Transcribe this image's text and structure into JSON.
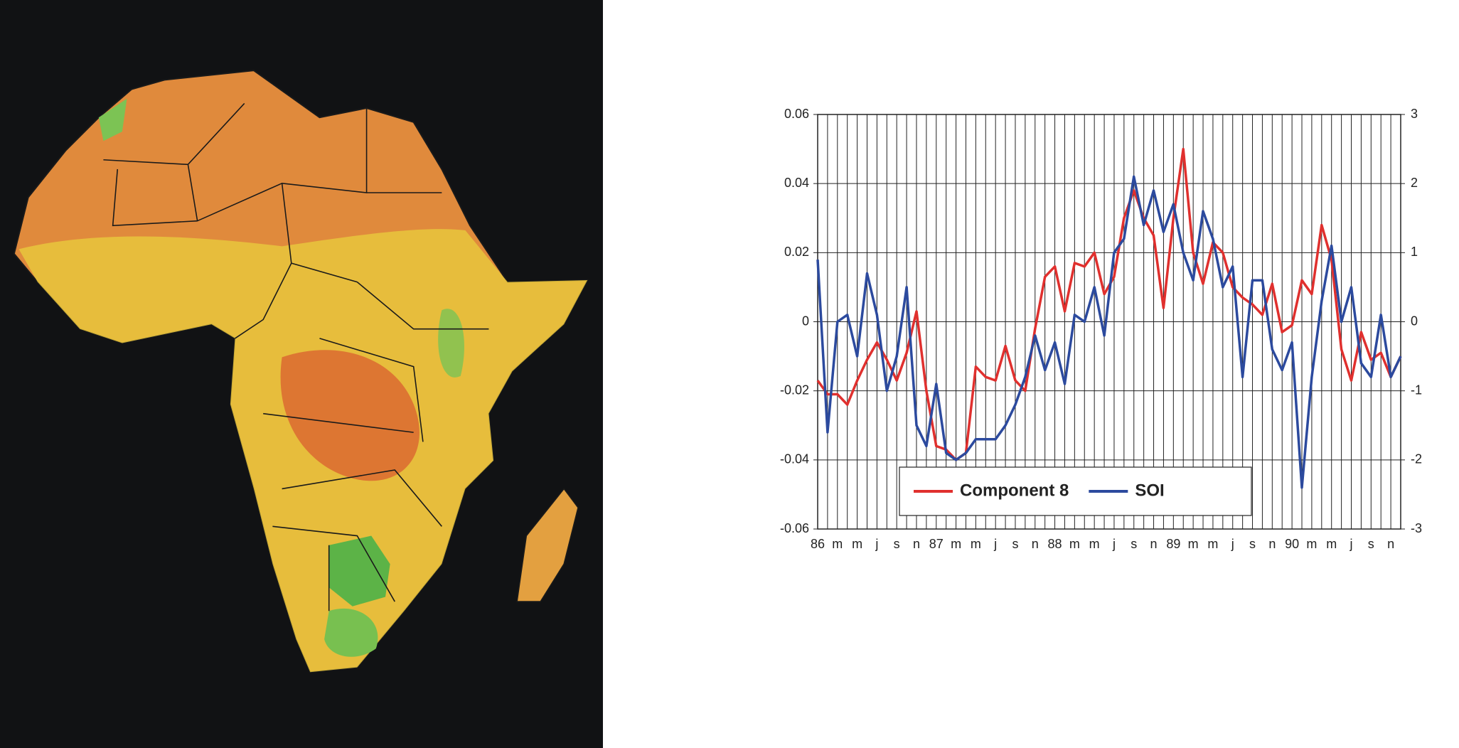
{
  "chart_data": {
    "type": "line",
    "categories": [
      "86",
      null,
      "m",
      null,
      "m",
      null,
      "j",
      null,
      "s",
      null,
      "n",
      null,
      "87",
      null,
      "m",
      null,
      "m",
      null,
      "j",
      null,
      "s",
      null,
      "n",
      null,
      "88",
      null,
      "m",
      null,
      "m",
      null,
      "j",
      null,
      "s",
      null,
      "n",
      null,
      "89",
      null,
      "m",
      null,
      "m",
      null,
      "j",
      null,
      "s",
      null,
      "n",
      null,
      "90",
      null,
      "m",
      null,
      "m",
      null,
      "j",
      null,
      "s",
      null,
      "n",
      null
    ],
    "series": [
      {
        "name": "Component 8",
        "color": "#e0302e",
        "axis": "y",
        "values": [
          -0.017,
          -0.021,
          -0.021,
          -0.024,
          -0.017,
          -0.011,
          -0.006,
          -0.011,
          -0.017,
          -0.009,
          0.003,
          -0.02,
          -0.036,
          -0.037,
          -0.04,
          -0.038,
          -0.013,
          -0.016,
          -0.017,
          -0.007,
          -0.017,
          -0.02,
          -0.002,
          0.013,
          0.016,
          0.003,
          0.017,
          0.016,
          0.02,
          0.008,
          0.013,
          0.03,
          0.038,
          0.03,
          0.025,
          0.004,
          0.03,
          0.05,
          0.02,
          0.011,
          0.023,
          0.02,
          0.01,
          0.007,
          0.005,
          0.002,
          0.011,
          -0.003,
          -0.001,
          0.012,
          0.008,
          0.028,
          0.018,
          -0.008,
          -0.017,
          -0.003,
          -0.011,
          -0.009,
          -0.016,
          -0.01
        ]
      },
      {
        "name": "SOI",
        "color": "#2c4a9e",
        "axis": "y2",
        "values": [
          0.9,
          -1.6,
          0.0,
          0.1,
          -0.5,
          0.7,
          0.1,
          -1.0,
          -0.5,
          0.5,
          -1.5,
          -1.8,
          -0.9,
          -1.9,
          -2.0,
          -1.9,
          -1.7,
          -1.7,
          -1.7,
          -1.5,
          -1.2,
          -0.8,
          -0.2,
          -0.7,
          -0.3,
          -0.9,
          0.1,
          0.0,
          0.5,
          -0.2,
          1.0,
          1.2,
          2.1,
          1.4,
          1.9,
          1.3,
          1.7,
          1.0,
          0.6,
          1.6,
          1.2,
          0.5,
          0.8,
          -0.8,
          0.6,
          0.6,
          -0.4,
          -0.7,
          -0.3,
          -2.4,
          -0.8,
          0.3,
          1.1,
          0.0,
          0.5,
          -0.6,
          -0.8,
          0.1,
          -0.8,
          -0.5
        ]
      }
    ],
    "ylim": [
      -0.06,
      0.06
    ],
    "yticks": [
      -0.06,
      -0.04,
      -0.02,
      0,
      0.02,
      0.04,
      0.06
    ],
    "y2lim": [
      -3,
      3
    ],
    "y2ticks": [
      -3,
      -2,
      -1,
      0,
      1,
      2,
      3
    ],
    "grid": true,
    "legend": "lower left"
  }
}
